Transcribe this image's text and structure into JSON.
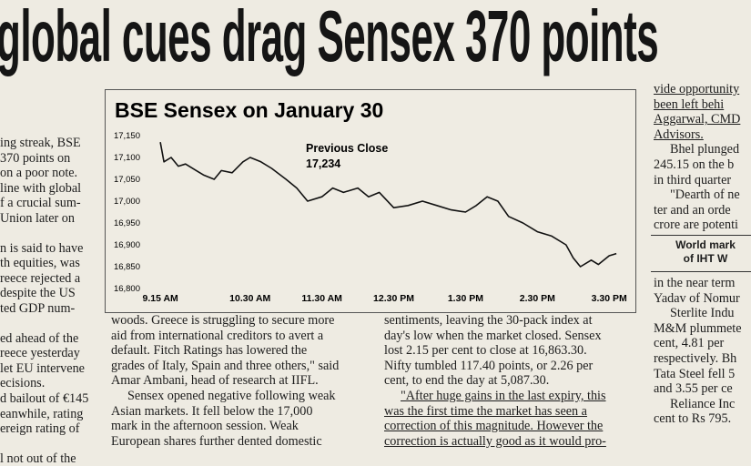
{
  "headline": "global cues drag Sensex 370 points",
  "chart_data": {
    "type": "line",
    "title": "BSE Sensex on January 30",
    "annotation": [
      "Previous Close",
      "17,234"
    ],
    "color": "#111111",
    "x": [
      9.25,
      9.3,
      9.4,
      9.5,
      9.6,
      9.75,
      9.85,
      10.0,
      10.1,
      10.25,
      10.4,
      10.5,
      10.65,
      10.8,
      11.0,
      11.15,
      11.3,
      11.5,
      11.65,
      11.8,
      12.0,
      12.15,
      12.3,
      12.5,
      12.7,
      12.9,
      13.1,
      13.3,
      13.5,
      13.65,
      13.8,
      13.95,
      14.1,
      14.3,
      14.5,
      14.7,
      14.9,
      15.0,
      15.1,
      15.25,
      15.35,
      15.5,
      15.6
    ],
    "values": [
      17135,
      17090,
      17100,
      17080,
      17085,
      17070,
      17060,
      17050,
      17070,
      17065,
      17090,
      17100,
      17090,
      17075,
      17050,
      17030,
      17000,
      17010,
      17030,
      17020,
      17030,
      17010,
      17020,
      16985,
      16990,
      17000,
      16990,
      16980,
      16975,
      16990,
      17010,
      17000,
      16965,
      16950,
      16930,
      16920,
      16900,
      16870,
      16850,
      16865,
      16855,
      16875,
      16880
    ],
    "xlim": [
      9.02,
      15.84
    ],
    "xticks": [
      {
        "value": 9.25,
        "label": "9.15 AM"
      },
      {
        "value": 10.5,
        "label": "10.30 AM"
      },
      {
        "value": 11.5,
        "label": "11.30 AM"
      },
      {
        "value": 12.5,
        "label": "12.30 PM"
      },
      {
        "value": 13.5,
        "label": "1.30 PM"
      },
      {
        "value": 14.5,
        "label": "2.30 PM"
      },
      {
        "value": 15.5,
        "label": "3.30 PM"
      }
    ],
    "ylim": [
      16800,
      17150
    ],
    "yticks": [
      {
        "value": 16800,
        "label": "16,800"
      },
      {
        "value": 16850,
        "label": "16,850"
      },
      {
        "value": 16900,
        "label": "16,900"
      },
      {
        "value": 16950,
        "label": "16,950"
      },
      {
        "value": 17000,
        "label": "17,000"
      },
      {
        "value": 17050,
        "label": "17,050"
      },
      {
        "value": 17100,
        "label": "17,100"
      },
      {
        "value": 17150,
        "label": "17,150"
      }
    ]
  },
  "columns": [
    {
      "paragraphs": [
        {
          "lines": [
            "ing streak, BSE",
            "370 points on",
            "on a poor note.",
            "line with global",
            "f a crucial sum-",
            "Union later on"
          ]
        },
        {
          "lines": [
            "n is said to have",
            "th equities, was",
            "reece rejected a",
            "despite the US",
            "ted GDP num-"
          ]
        },
        {
          "lines": [
            "ed ahead of the",
            "reece yesterday",
            "let EU intervene",
            "ecisions.",
            "d bailout of €145",
            "eanwhile, rating",
            "ereign rating of"
          ]
        },
        {
          "lines": [
            "l not out of the"
          ]
        }
      ]
    },
    {
      "paragraphs": [
        {
          "lines": [
            "woods. Greece is struggling to secure more",
            "aid from international creditors to avert a",
            "default. Fitch Ratings has lowered the",
            "grades of Italy, Spain and three others,\" said",
            "Amar Ambani, head of research at IIFL."
          ]
        },
        {
          "lines": [
            "Sensex opened negative following weak",
            "Asian markets. It fell below the 17,000",
            "mark in the afternoon session. Weak",
            "European shares further dented domestic"
          ]
        }
      ]
    },
    {
      "paragraphs": [
        {
          "lines": [
            "sentiments, leaving the 30-pack index at",
            "day's low when the market closed. Sensex",
            "lost 2.15 per cent to close at 16,863.30.",
            "Nifty tumbled 117.40 points, or 2.26 per",
            "cent, to end the day at 5,087.30."
          ]
        },
        {
          "underlined": true,
          "lines": [
            "\"After huge gains in the last expiry, this",
            "was the first time the market has seen a",
            "correction of this magnitude. However the",
            "correction is actually good as it would pro-"
          ]
        }
      ]
    },
    {
      "paragraphs": [
        {
          "underlined": true,
          "lines": [
            "vide opportunity",
            "been left behi",
            "Aggarwal, CMD",
            "Advisors."
          ]
        },
        {
          "lines": [
            "Bhel plunged",
            "245.15 on the b",
            "in third quarter"
          ]
        },
        {
          "lines": [
            "\"Dearth of ne",
            "ter and an orde",
            "crore are potenti"
          ]
        }
      ]
    },
    {
      "paragraphs": [
        {
          "lines": [
            "in the near term",
            "Yadav of Nomur"
          ]
        },
        {
          "lines": [
            "Sterlite Indu",
            "M&M plummete",
            "cent, 4.81 per",
            "respectively. Bh",
            "Tata Steel fell 5",
            "and 3.55 per ce"
          ]
        },
        {
          "lines": [
            "Reliance Inc",
            "cent to Rs 795."
          ]
        }
      ]
    }
  ],
  "sidebar_box": [
    "World mark",
    "of IHT W"
  ]
}
